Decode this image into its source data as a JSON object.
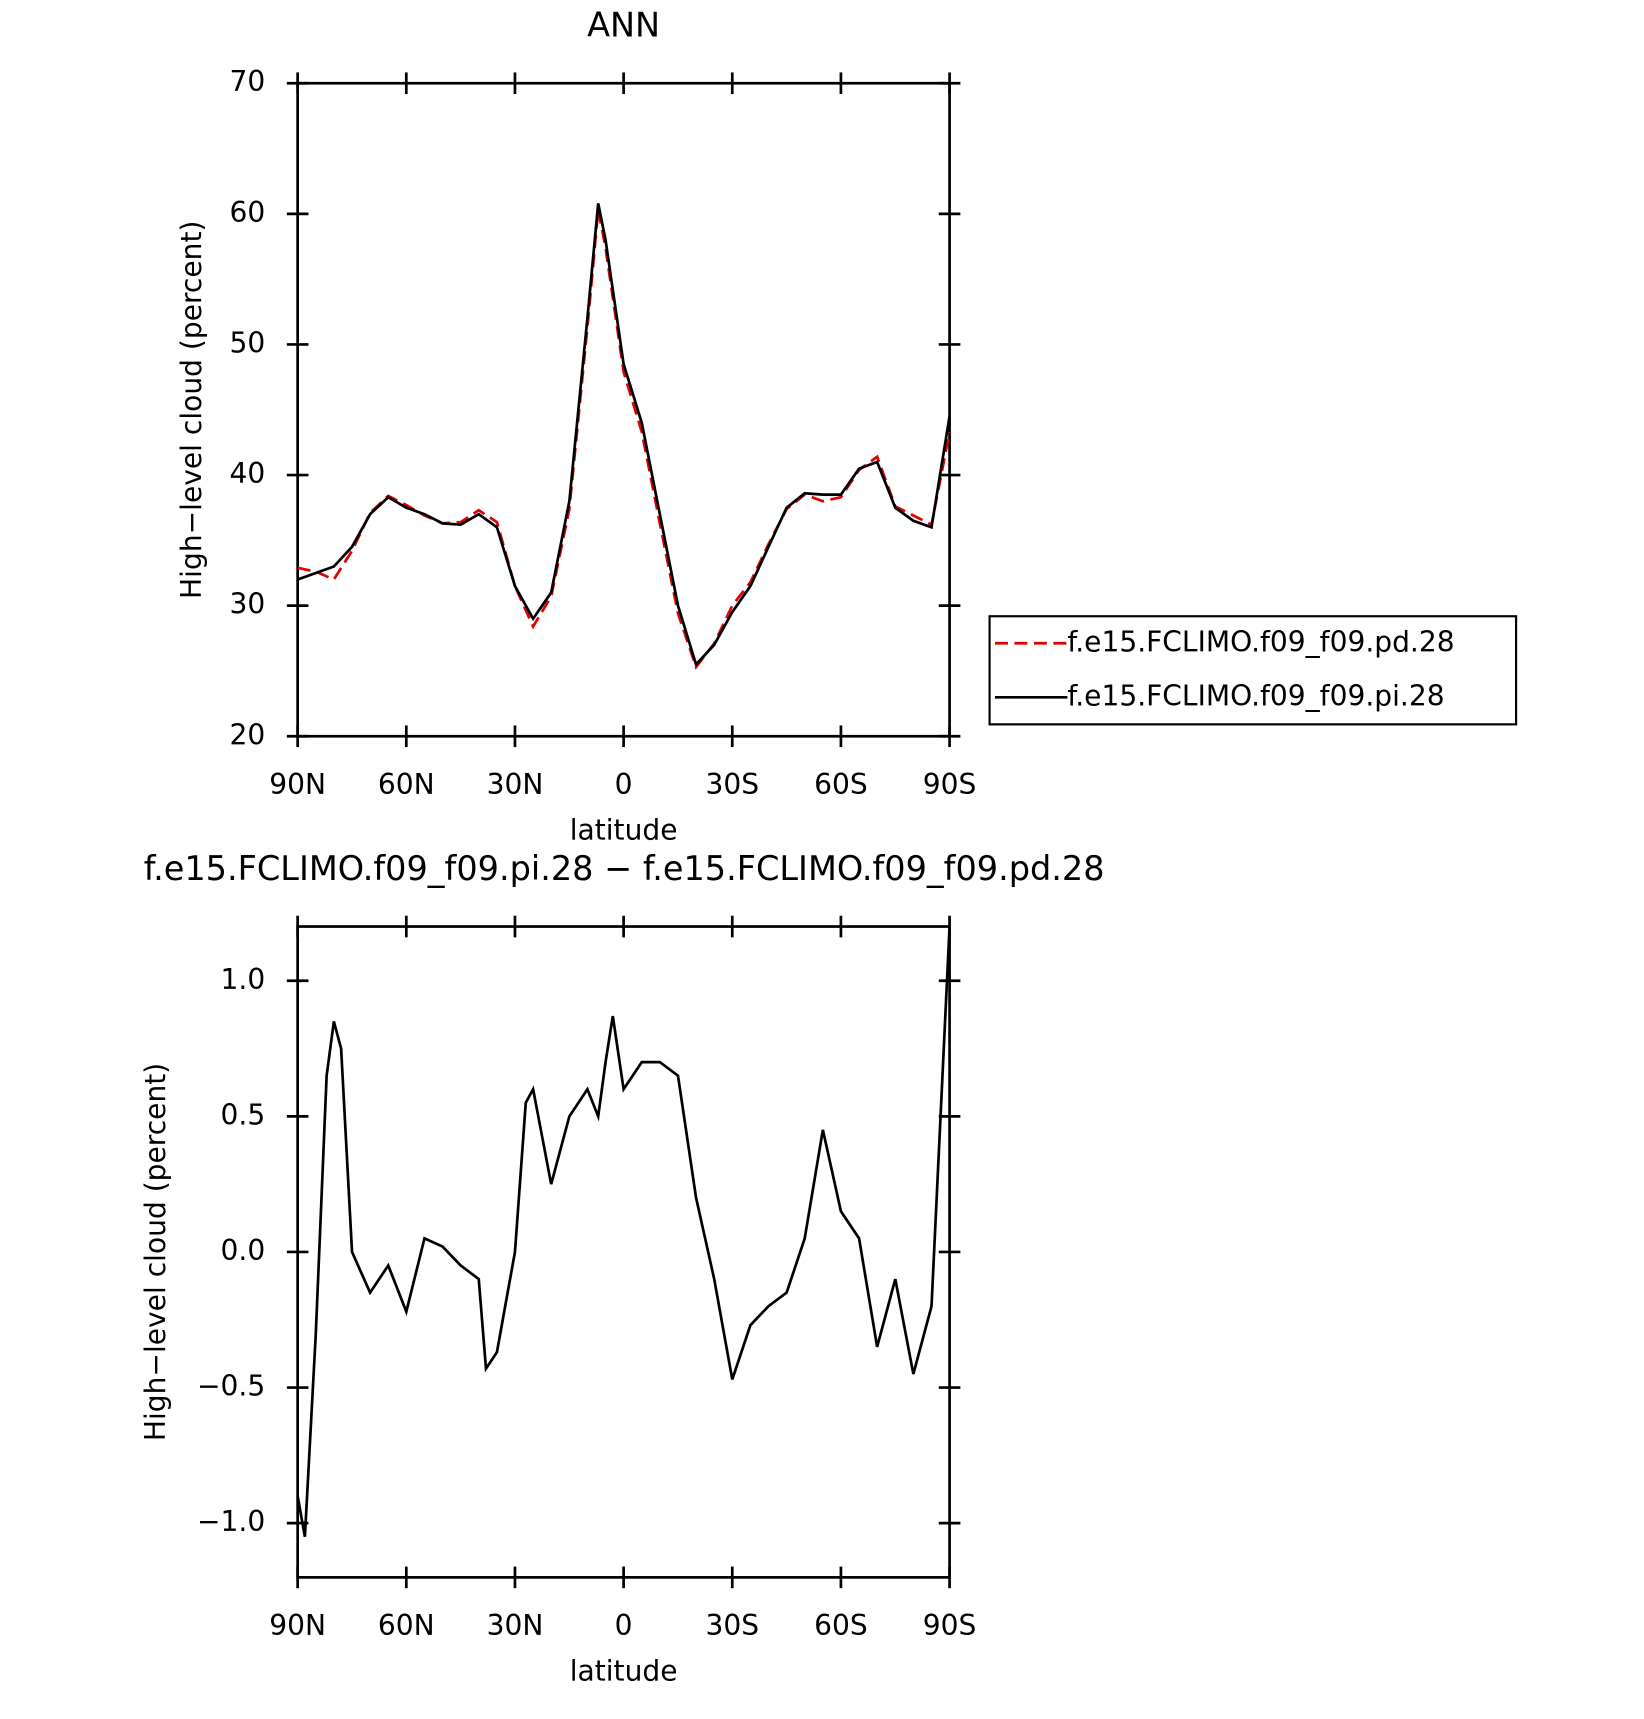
{
  "chart_data": [
    {
      "type": "line",
      "title": "ANN",
      "y_label": "High−level cloud (percent)",
      "x_label": "latitude",
      "legend": "right",
      "x": [
        90,
        85,
        80,
        75,
        70,
        65,
        60,
        55,
        50,
        45,
        40,
        35,
        30,
        25,
        20,
        15,
        10,
        7,
        5,
        0,
        -5,
        -10,
        -15,
        -20,
        -25,
        -30,
        -35,
        -40,
        -45,
        -50,
        -55,
        -60,
        -65,
        -70,
        -75,
        -80,
        -85,
        -90
      ],
      "series": [
        {
          "name": "f.e15.FCLIMO.f09_f09.pd.28",
          "color": "#e00000",
          "dashed": true,
          "values": [
            32.9,
            32.6,
            32.0,
            34.2,
            37.1,
            38.4,
            37.7,
            36.9,
            36.3,
            36.4,
            37.3,
            36.4,
            31.5,
            28.4,
            30.7,
            37.4,
            51.3,
            60.3,
            57.4,
            47.9,
            43.3,
            36.3,
            29.4,
            25.3,
            27.1,
            30.0,
            31.8,
            34.7,
            37.4,
            38.5,
            38.0,
            38.3,
            40.4,
            41.4,
            37.6,
            36.9,
            36.2,
            43.3
          ]
        },
        {
          "name": "f.e15.FCLIMO.f09_f09.pi.28",
          "color": "#000000",
          "dashed": false,
          "values": [
            32.0,
            32.5,
            33.0,
            34.5,
            37.0,
            38.3,
            37.5,
            37.0,
            36.3,
            36.2,
            37.0,
            36.0,
            31.5,
            29.0,
            31.0,
            38.0,
            52.0,
            60.8,
            58.0,
            48.5,
            44.0,
            37.0,
            30.0,
            25.5,
            27.0,
            29.5,
            31.5,
            34.5,
            37.5,
            38.6,
            38.5,
            38.5,
            40.5,
            41.0,
            37.5,
            36.5,
            36.0,
            44.5
          ]
        }
      ],
      "xlim": [
        90,
        -90
      ],
      "xticks": [
        {
          "value": 90,
          "label": "90N"
        },
        {
          "value": 60,
          "label": "60N"
        },
        {
          "value": 30,
          "label": "30N"
        },
        0,
        {
          "value": -30,
          "label": "30S"
        },
        {
          "value": -60,
          "label": "60S"
        },
        {
          "value": -90,
          "label": "90S"
        }
      ],
      "ylim": [
        20,
        70
      ],
      "yticks": [
        20,
        30,
        40,
        50,
        60,
        70
      ]
    },
    {
      "type": "line",
      "title": "f.e15.FCLIMO.f09_f09.pi.28 − f.e15.FCLIMO.f09_f09.pd.28",
      "y_label": "High−level cloud (percent)",
      "x_label": "latitude",
      "x": [
        90,
        88,
        85,
        82,
        80,
        78,
        75,
        70,
        65,
        60,
        55,
        50,
        45,
        40,
        38,
        35,
        30,
        27,
        25,
        20,
        15,
        10,
        7,
        5,
        3,
        0,
        -5,
        -10,
        -15,
        -20,
        -25,
        -30,
        -35,
        -40,
        -45,
        -50,
        -55,
        -60,
        -65,
        -70,
        -75,
        -80,
        -85,
        -90
      ],
      "series": [
        {
          "color": "#000000",
          "dashed": false,
          "values": [
            -0.9,
            -1.05,
            -0.3,
            0.65,
            0.85,
            0.75,
            0.0,
            -0.15,
            -0.05,
            -0.22,
            0.05,
            0.02,
            -0.05,
            -0.1,
            -0.43,
            -0.37,
            0.0,
            0.55,
            0.6,
            0.25,
            0.5,
            0.6,
            0.5,
            0.7,
            0.87,
            0.6,
            0.7,
            0.7,
            0.65,
            0.2,
            -0.1,
            -0.47,
            -0.27,
            -0.2,
            -0.15,
            0.05,
            0.45,
            0.15,
            0.05,
            -0.35,
            -0.1,
            -0.45,
            -0.2,
            1.2
          ]
        }
      ],
      "xlim": [
        90,
        -90
      ],
      "xticks": [
        {
          "value": 90,
          "label": "90N"
        },
        {
          "value": 60,
          "label": "60N"
        },
        {
          "value": 30,
          "label": "30N"
        },
        0,
        {
          "value": -30,
          "label": "30S"
        },
        {
          "value": -60,
          "label": "60S"
        },
        {
          "value": -90,
          "label": "90S"
        }
      ],
      "ylim": [
        -1.2,
        1.2
      ],
      "yticks": [
        {
          "value": -1,
          "label": "−1.0"
        },
        {
          "value": -0.5,
          "label": "−0.5"
        },
        {
          "value": 0,
          "label": "0.0"
        },
        0.5,
        {
          "value": 1,
          "label": "1.0"
        }
      ]
    }
  ]
}
